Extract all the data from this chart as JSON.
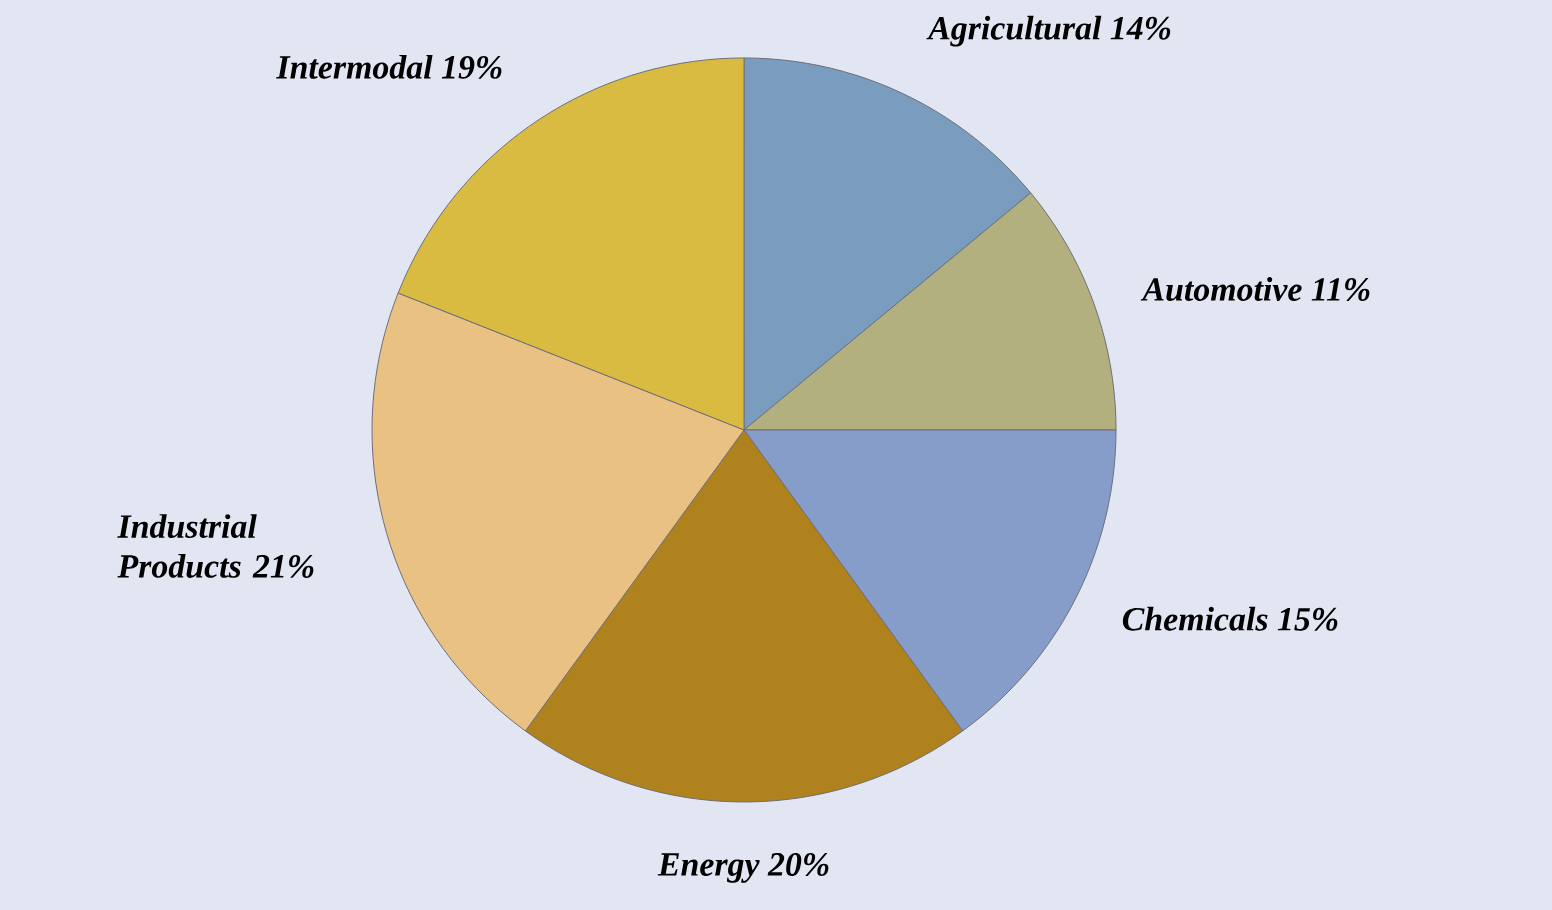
{
  "chart_data": {
    "type": "pie",
    "categories": [
      "Agricultural",
      "Automotive",
      "Chemicals",
      "Energy",
      "Industrial Products",
      "Intermodal"
    ],
    "values": [
      14,
      11,
      15,
      20,
      21,
      19
    ],
    "value_labels": [
      "14%",
      "11%",
      "15%",
      "20%",
      "21%",
      "19%"
    ],
    "colors": [
      "#7a9dbf",
      "#b3b07f",
      "#879dc9",
      "#b0821d",
      "#e9c283",
      "#d9bb41"
    ]
  }
}
